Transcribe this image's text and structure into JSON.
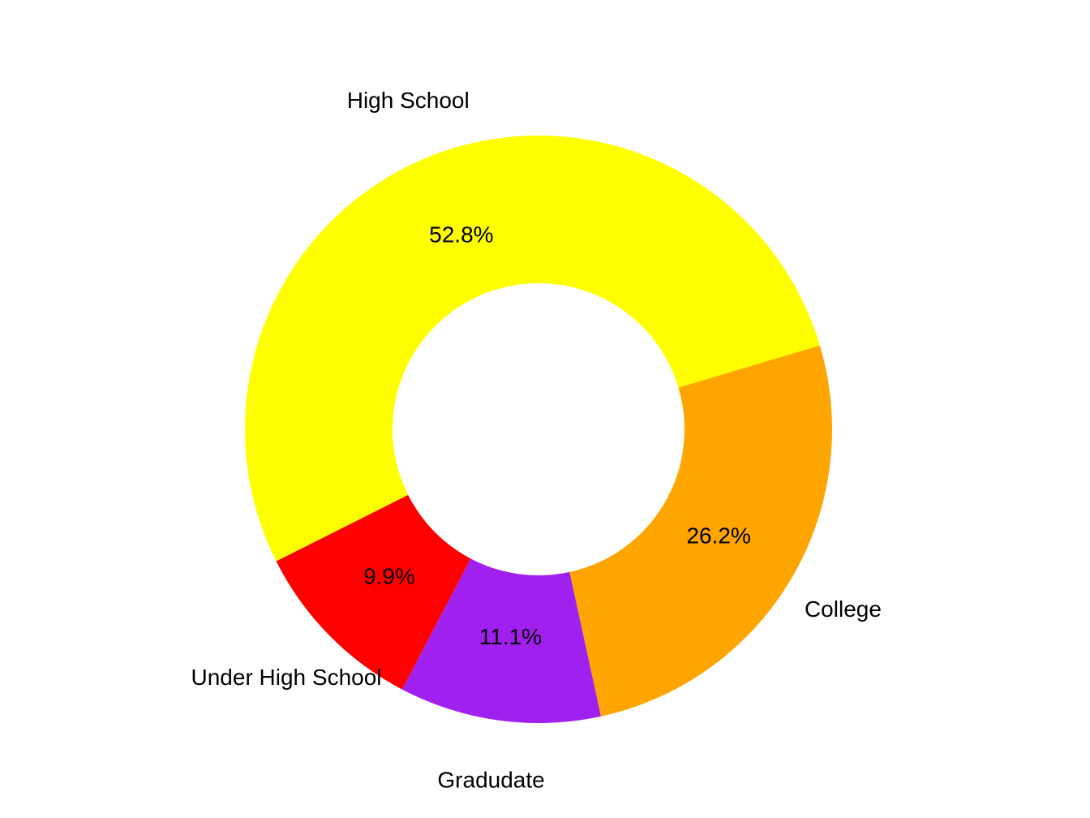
{
  "chart_data": {
    "type": "pie",
    "variant": "donut",
    "slices": [
      {
        "label": "College",
        "value": 26.2,
        "percent_label": "26.2%",
        "color": "#FFA500"
      },
      {
        "label": "Gradudate",
        "value": 11.1,
        "percent_label": "11.1%",
        "color": "#A020F0"
      },
      {
        "label": "Under High School",
        "value": 9.9,
        "percent_label": "9.9%",
        "color": "#FF0000"
      },
      {
        "label": "High School",
        "value": 52.8,
        "percent_label": "52.8%",
        "color": "#FFFF00"
      }
    ],
    "direction": "clockwise",
    "legend": "none"
  }
}
